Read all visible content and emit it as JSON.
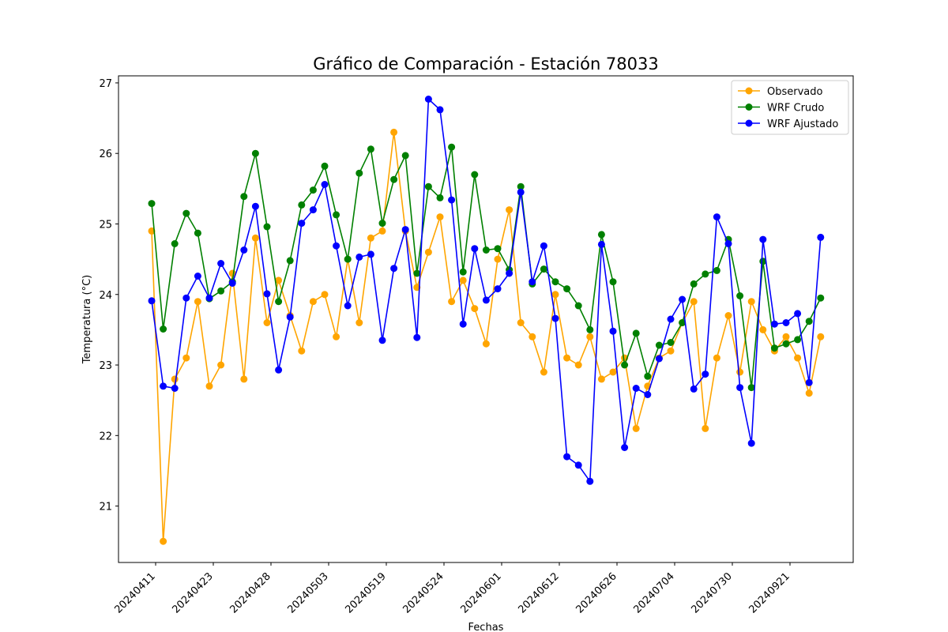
{
  "chart_data": {
    "type": "line",
    "title": "Gráfico de Comparación - Estación 78033",
    "xlabel": "Fechas",
    "ylabel": "Temperatura (°C)",
    "x_tick_labels": [
      "20240411",
      "20240423",
      "20240428",
      "20240503",
      "20240519",
      "20240524",
      "20240601",
      "20240612",
      "20240626",
      "20240704",
      "20240730",
      "20240921"
    ],
    "y_ticks": [
      21,
      22,
      23,
      24,
      25,
      26,
      27
    ],
    "ylim": [
      20.2,
      27.1
    ],
    "grid": false,
    "legend_position": "upper right",
    "series": [
      {
        "name": "Observado",
        "color": "#ffa500",
        "values": [
          24.9,
          20.5,
          22.8,
          23.1,
          23.9,
          22.7,
          23.0,
          24.3,
          22.8,
          24.8,
          23.6,
          24.2,
          23.7,
          23.2,
          23.9,
          24.0,
          23.4,
          24.5,
          23.6,
          24.8,
          24.9,
          26.3,
          24.9,
          24.1,
          24.6,
          25.1,
          23.9,
          24.2,
          23.8,
          23.3,
          24.5,
          25.2,
          23.6,
          23.4,
          22.9,
          24.0,
          23.1,
          23.0,
          23.4,
          22.8,
          22.9,
          23.1,
          22.1,
          22.7,
          23.1,
          23.2,
          23.6,
          23.9,
          22.1,
          23.1,
          23.7,
          22.9,
          23.9,
          23.5,
          23.2,
          23.4,
          23.1,
          22.6,
          23.4
        ]
      },
      {
        "name": "WRF Crudo",
        "color": "#008000",
        "values": [
          25.29,
          23.51,
          24.72,
          25.15,
          24.87,
          23.94,
          24.05,
          24.18,
          25.39,
          26.0,
          24.96,
          23.9,
          24.48,
          25.27,
          25.48,
          25.82,
          25.13,
          24.5,
          25.72,
          26.06,
          25.01,
          25.63,
          25.97,
          24.3,
          25.53,
          25.37,
          26.09,
          24.32,
          25.7,
          24.63,
          24.65,
          24.35,
          25.53,
          24.15,
          24.36,
          24.18,
          24.08,
          23.84,
          23.5,
          24.85,
          24.18,
          23.0,
          23.45,
          22.84,
          23.28,
          23.32,
          23.6,
          24.15,
          24.29,
          24.34,
          24.78,
          23.98,
          22.68,
          24.47,
          23.24,
          23.3,
          23.36,
          23.62,
          23.95
        ]
      },
      {
        "name": "WRF Ajustado",
        "color": "#0000ff",
        "values": [
          23.91,
          22.7,
          22.67,
          23.95,
          24.26,
          23.95,
          24.44,
          24.16,
          24.63,
          25.25,
          24.01,
          22.93,
          23.68,
          25.01,
          25.2,
          25.56,
          24.69,
          23.84,
          24.53,
          24.57,
          23.35,
          24.37,
          24.92,
          23.39,
          26.77,
          26.62,
          25.34,
          23.58,
          24.65,
          23.92,
          24.08,
          24.3,
          25.45,
          24.18,
          24.69,
          23.66,
          21.7,
          21.58,
          21.35,
          24.71,
          23.48,
          21.83,
          22.67,
          22.58,
          23.09,
          23.65,
          23.93,
          22.66,
          22.87,
          25.1,
          24.72,
          22.68,
          21.89,
          24.78,
          23.58,
          23.6,
          23.73,
          22.75,
          24.81
        ]
      }
    ]
  }
}
